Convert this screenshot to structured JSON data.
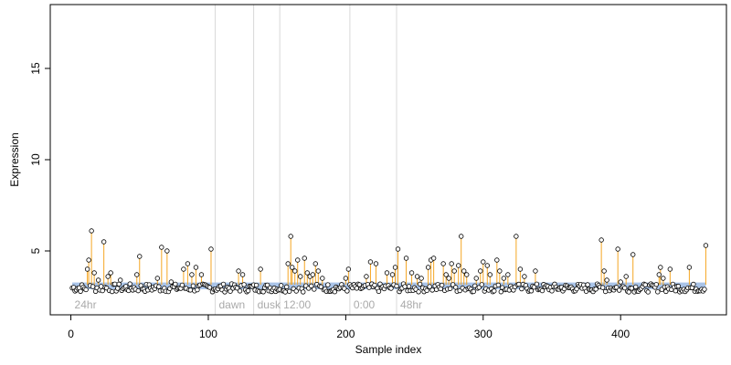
{
  "chart_data": {
    "type": "scatter",
    "title": "",
    "xlabel": "Sample index",
    "ylabel": "Expression",
    "xlim": [
      -15,
      477
    ],
    "ylim": [
      1.5,
      18.5
    ],
    "x_ticks": [
      0,
      100,
      200,
      300,
      400
    ],
    "y_ticks": [
      5,
      10,
      15
    ],
    "grid": false,
    "baseline": 3.15,
    "sections": [
      {
        "label": "24hr",
        "x": 0
      },
      {
        "label": "dawn",
        "x": 105
      },
      {
        "label": "dusk",
        "x": 133
      },
      {
        "label": "12:00",
        "x": 152
      },
      {
        "label": "0:00",
        "x": 203
      },
      {
        "label": "48hr",
        "x": 237
      }
    ],
    "peaks": [
      {
        "x": 12,
        "y": 4.0
      },
      {
        "x": 13,
        "y": 4.5
      },
      {
        "x": 15,
        "y": 6.1
      },
      {
        "x": 17,
        "y": 3.8
      },
      {
        "x": 20,
        "y": 3.4
      },
      {
        "x": 24,
        "y": 5.5
      },
      {
        "x": 27,
        "y": 3.6
      },
      {
        "x": 29,
        "y": 3.8
      },
      {
        "x": 36,
        "y": 3.4
      },
      {
        "x": 48,
        "y": 3.7
      },
      {
        "x": 50,
        "y": 4.7
      },
      {
        "x": 63,
        "y": 3.5
      },
      {
        "x": 66,
        "y": 5.2
      },
      {
        "x": 70,
        "y": 5.0
      },
      {
        "x": 73,
        "y": 3.3
      },
      {
        "x": 82,
        "y": 4.0
      },
      {
        "x": 85,
        "y": 4.3
      },
      {
        "x": 88,
        "y": 3.7
      },
      {
        "x": 91,
        "y": 4.1
      },
      {
        "x": 95,
        "y": 3.7
      },
      {
        "x": 102,
        "y": 5.1
      },
      {
        "x": 122,
        "y": 3.9
      },
      {
        "x": 125,
        "y": 3.7
      },
      {
        "x": 138,
        "y": 4.0
      },
      {
        "x": 158,
        "y": 4.3
      },
      {
        "x": 160,
        "y": 5.8
      },
      {
        "x": 161,
        "y": 4.1
      },
      {
        "x": 163,
        "y": 3.9
      },
      {
        "x": 165,
        "y": 4.5
      },
      {
        "x": 167,
        "y": 3.6
      },
      {
        "x": 170,
        "y": 4.6
      },
      {
        "x": 172,
        "y": 3.8
      },
      {
        "x": 174,
        "y": 3.6
      },
      {
        "x": 176,
        "y": 3.7
      },
      {
        "x": 178,
        "y": 4.3
      },
      {
        "x": 180,
        "y": 3.9
      },
      {
        "x": 183,
        "y": 3.5
      },
      {
        "x": 200,
        "y": 3.5
      },
      {
        "x": 202,
        "y": 4.0
      },
      {
        "x": 215,
        "y": 3.6
      },
      {
        "x": 218,
        "y": 4.4
      },
      {
        "x": 222,
        "y": 4.3
      },
      {
        "x": 230,
        "y": 3.8
      },
      {
        "x": 234,
        "y": 3.7
      },
      {
        "x": 236,
        "y": 4.1
      },
      {
        "x": 238,
        "y": 5.1
      },
      {
        "x": 244,
        "y": 4.6
      },
      {
        "x": 248,
        "y": 3.8
      },
      {
        "x": 252,
        "y": 3.6
      },
      {
        "x": 255,
        "y": 3.5
      },
      {
        "x": 260,
        "y": 4.1
      },
      {
        "x": 262,
        "y": 4.5
      },
      {
        "x": 264,
        "y": 4.6
      },
      {
        "x": 271,
        "y": 4.3
      },
      {
        "x": 273,
        "y": 3.7
      },
      {
        "x": 275,
        "y": 3.5
      },
      {
        "x": 277,
        "y": 4.3
      },
      {
        "x": 279,
        "y": 3.9
      },
      {
        "x": 282,
        "y": 4.2
      },
      {
        "x": 284,
        "y": 5.8
      },
      {
        "x": 286,
        "y": 3.9
      },
      {
        "x": 288,
        "y": 3.7
      },
      {
        "x": 295,
        "y": 3.5
      },
      {
        "x": 298,
        "y": 3.9
      },
      {
        "x": 300,
        "y": 4.4
      },
      {
        "x": 303,
        "y": 4.2
      },
      {
        "x": 305,
        "y": 3.7
      },
      {
        "x": 310,
        "y": 4.5
      },
      {
        "x": 312,
        "y": 3.9
      },
      {
        "x": 315,
        "y": 3.5
      },
      {
        "x": 318,
        "y": 3.7
      },
      {
        "x": 324,
        "y": 5.8
      },
      {
        "x": 327,
        "y": 4.0
      },
      {
        "x": 330,
        "y": 3.6
      },
      {
        "x": 338,
        "y": 3.9
      },
      {
        "x": 386,
        "y": 5.6
      },
      {
        "x": 388,
        "y": 3.9
      },
      {
        "x": 390,
        "y": 3.4
      },
      {
        "x": 398,
        "y": 5.1
      },
      {
        "x": 400,
        "y": 3.3
      },
      {
        "x": 404,
        "y": 3.6
      },
      {
        "x": 409,
        "y": 4.8
      },
      {
        "x": 428,
        "y": 3.7
      },
      {
        "x": 429,
        "y": 4.1
      },
      {
        "x": 431,
        "y": 3.5
      },
      {
        "x": 436,
        "y": 4.0
      },
      {
        "x": 450,
        "y": 4.1
      },
      {
        "x": 462,
        "y": 5.3
      }
    ],
    "background": {
      "count": 462,
      "y_min": 2.75,
      "y_max": 3.2
    },
    "colors": {
      "stem": "#f5a623",
      "band": "#aac4e8",
      "point_fill": "#ffffff",
      "point_edge": "#000000",
      "divider": "#d9d9d9",
      "section_label": "#aaaaaa"
    }
  }
}
